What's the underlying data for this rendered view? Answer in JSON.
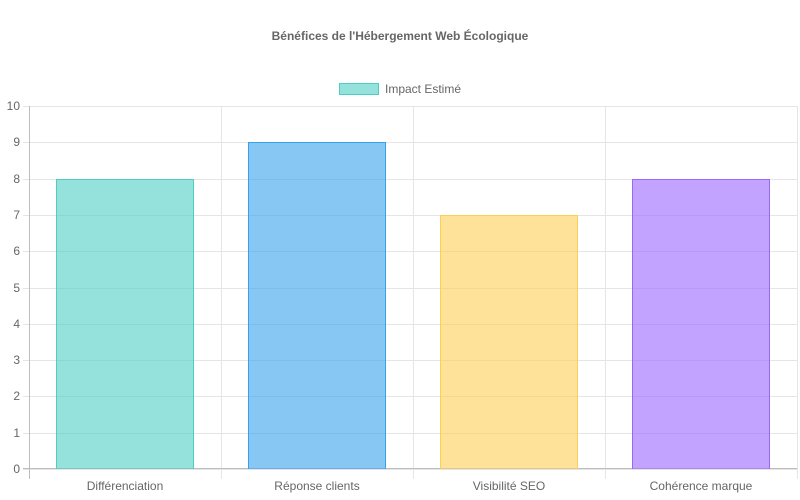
{
  "chart_data": {
    "type": "bar",
    "title": "Bénéfices de l'Hébergement Web Écologique",
    "categories": [
      "Différenciation",
      "Réponse clients",
      "Visibilité SEO",
      "Cohérence marque"
    ],
    "series": [
      {
        "name": "Impact Estimé",
        "values": [
          8,
          9,
          7,
          8
        ],
        "colors": [
          "#4ecdc4",
          "#36a2eb",
          "#ffce56",
          "#9966ff"
        ]
      }
    ],
    "xlabel": "",
    "ylabel": "",
    "ylim": [
      0,
      10
    ],
    "yticks": [
      "0",
      "1",
      "2",
      "3",
      "4",
      "5",
      "6",
      "7",
      "8",
      "9",
      "10"
    ],
    "grid": true,
    "legend_position": "top"
  },
  "legend": {
    "label": "Impact Estimé"
  }
}
